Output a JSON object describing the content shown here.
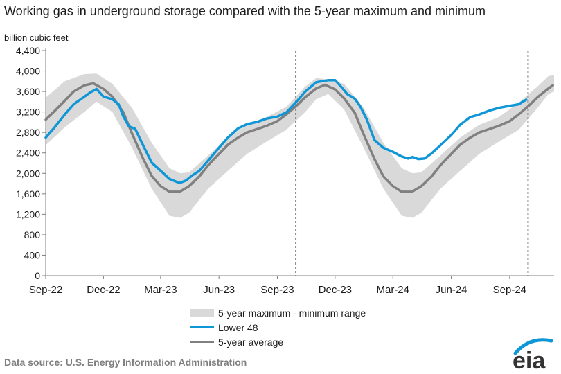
{
  "chart_data": {
    "type": "area",
    "title": "Working gas in underground  storage compared with the 5-year maximum and minimum",
    "ylabel": "billion cubic feet",
    "ylim": [
      0,
      4400
    ],
    "yticks": [
      "0",
      "400",
      "800",
      "1,200",
      "1,600",
      "2,000",
      "2,400",
      "2,800",
      "3,200",
      "3,600",
      "4,000",
      "4,400"
    ],
    "xtick_labels": [
      "Sep-22",
      "Dec-22",
      "Mar-23",
      "Jun-23",
      "Sep-23",
      "Dec-23",
      "Mar-24",
      "Jun-24",
      "Sep-24"
    ],
    "x_start": "2022-09-01",
    "x_end": "2024-11-10",
    "vertical_markers": [
      "2023-09-30",
      "2024-09-30"
    ],
    "series": [
      {
        "name": "5-year maximum - minimum range",
        "type": "band",
        "color": "#d9d9d9",
        "x": [
          "2022-09-01",
          "2022-10-01",
          "2022-11-01",
          "2022-11-20",
          "2022-12-15",
          "2023-01-15",
          "2023-02-15",
          "2023-03-15",
          "2023-04-01",
          "2023-04-15",
          "2023-05-15",
          "2023-06-15",
          "2023-07-15",
          "2023-08-15",
          "2023-09-15",
          "2023-10-15",
          "2023-11-01",
          "2023-11-20",
          "2023-12-15",
          "2024-01-15",
          "2024-02-15",
          "2024-03-15",
          "2024-04-01",
          "2024-04-15",
          "2024-05-15",
          "2024-06-15",
          "2024-07-15",
          "2024-08-15",
          "2024-09-15",
          "2024-10-15",
          "2024-11-01",
          "2024-11-10"
        ],
        "max": [
          3480,
          3800,
          3940,
          3950,
          3750,
          3280,
          2600,
          2100,
          2000,
          2020,
          2350,
          2700,
          2950,
          3100,
          3300,
          3700,
          3860,
          3840,
          3750,
          3280,
          2600,
          2100,
          2000,
          2020,
          2350,
          2700,
          2950,
          3100,
          3380,
          3700,
          3900,
          3920
        ],
        "min": [
          2550,
          2900,
          3200,
          3400,
          3200,
          2500,
          1700,
          1170,
          1130,
          1230,
          1700,
          2050,
          2380,
          2620,
          2850,
          3200,
          3450,
          3550,
          3250,
          2500,
          1700,
          1170,
          1130,
          1230,
          1700,
          2050,
          2380,
          2620,
          2850,
          3280,
          3550,
          3600
        ]
      },
      {
        "name": "Lower 48",
        "color": "#0f96d6",
        "x": [
          "2022-09-01",
          "2022-09-15",
          "2022-10-01",
          "2022-10-15",
          "2022-11-01",
          "2022-11-10",
          "2022-11-20",
          "2022-12-01",
          "2022-12-15",
          "2022-12-25",
          "2023-01-01",
          "2023-01-10",
          "2023-01-20",
          "2023-02-01",
          "2023-02-15",
          "2023-03-01",
          "2023-03-15",
          "2023-03-31",
          "2023-04-10",
          "2023-04-20",
          "2023-05-01",
          "2023-05-15",
          "2023-06-01",
          "2023-06-15",
          "2023-07-01",
          "2023-07-15",
          "2023-08-01",
          "2023-08-15",
          "2023-09-01",
          "2023-09-15",
          "2023-10-01",
          "2023-10-15",
          "2023-11-01",
          "2023-11-10",
          "2023-11-20",
          "2023-12-01",
          "2023-12-10",
          "2023-12-20",
          "2024-01-01",
          "2024-01-10",
          "2024-01-20",
          "2024-02-01",
          "2024-02-15",
          "2024-03-01",
          "2024-03-15",
          "2024-03-25",
          "2024-04-01",
          "2024-04-10",
          "2024-04-20",
          "2024-05-01",
          "2024-05-15",
          "2024-06-01",
          "2024-06-15",
          "2024-07-01",
          "2024-07-15",
          "2024-08-01",
          "2024-08-15",
          "2024-09-01",
          "2024-09-15",
          "2024-09-27"
        ],
        "values": [
          2700,
          2900,
          3150,
          3350,
          3500,
          3580,
          3650,
          3500,
          3450,
          3350,
          3120,
          2920,
          2870,
          2560,
          2210,
          2050,
          1890,
          1810,
          1860,
          1960,
          2050,
          2250,
          2500,
          2700,
          2880,
          2960,
          3010,
          3070,
          3110,
          3190,
          3400,
          3600,
          3780,
          3800,
          3820,
          3820,
          3700,
          3550,
          3460,
          3300,
          3050,
          2650,
          2500,
          2420,
          2330,
          2290,
          2320,
          2280,
          2290,
          2390,
          2550,
          2750,
          2950,
          3100,
          3150,
          3230,
          3280,
          3320,
          3350,
          3440
        ]
      },
      {
        "name": "5-year average",
        "color": "#808080",
        "x": [
          "2022-09-01",
          "2022-09-15",
          "2022-10-01",
          "2022-10-15",
          "2022-11-01",
          "2022-11-15",
          "2022-12-01",
          "2022-12-15",
          "2023-01-01",
          "2023-01-15",
          "2023-02-01",
          "2023-02-15",
          "2023-03-01",
          "2023-03-15",
          "2023-03-31",
          "2023-04-15",
          "2023-05-01",
          "2023-05-15",
          "2023-06-01",
          "2023-06-15",
          "2023-07-01",
          "2023-07-15",
          "2023-08-01",
          "2023-08-15",
          "2023-09-01",
          "2023-09-15",
          "2023-10-01",
          "2023-10-15",
          "2023-11-01",
          "2023-11-15",
          "2023-12-01",
          "2023-12-15",
          "2024-01-01",
          "2024-01-15",
          "2024-02-01",
          "2024-02-15",
          "2024-03-01",
          "2024-03-15",
          "2024-03-31",
          "2024-04-15",
          "2024-05-01",
          "2024-05-15",
          "2024-06-01",
          "2024-06-15",
          "2024-07-01",
          "2024-07-15",
          "2024-08-01",
          "2024-08-15",
          "2024-09-01",
          "2024-09-15",
          "2024-10-01",
          "2024-10-15",
          "2024-11-01",
          "2024-11-08"
        ],
        "values": [
          3050,
          3220,
          3420,
          3600,
          3720,
          3760,
          3650,
          3500,
          3200,
          2780,
          2300,
          1950,
          1750,
          1640,
          1640,
          1750,
          1940,
          2160,
          2380,
          2560,
          2700,
          2800,
          2870,
          2930,
          3020,
          3150,
          3320,
          3490,
          3660,
          3730,
          3640,
          3470,
          3180,
          2760,
          2280,
          1940,
          1750,
          1640,
          1640,
          1750,
          1940,
          2160,
          2380,
          2560,
          2700,
          2800,
          2870,
          2930,
          3020,
          3150,
          3320,
          3490,
          3660,
          3720
        ]
      }
    ],
    "legend_position": "bottom-center",
    "grid": false
  },
  "legend": {
    "range": "5-year maximum - minimum range",
    "lower": "Lower 48",
    "avg": "5-year average"
  },
  "source": "Data source:  U.S. Energy Information Administration",
  "logo_text": "eia"
}
